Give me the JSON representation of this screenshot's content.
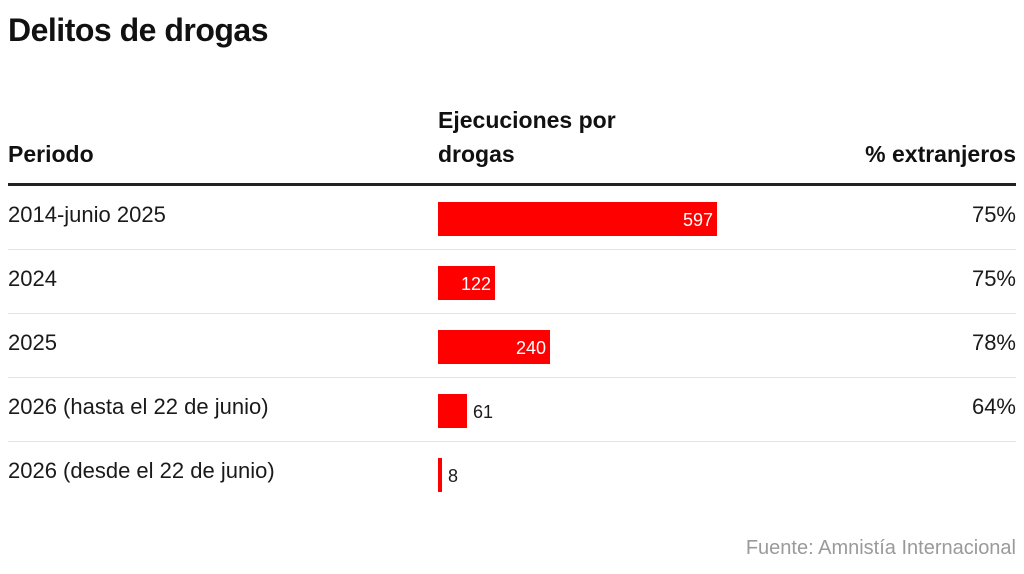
{
  "title": "Delitos de drogas",
  "headers": {
    "period": "Periodo",
    "executions": "Ejecuciones por drogas",
    "foreign_pct": "% extranjeros"
  },
  "colors": {
    "bar": "#ff0000",
    "source_text": "#9a9a9a"
  },
  "source": "Fuente: Amnistía Internacional",
  "chart_data": {
    "type": "bar",
    "orientation": "horizontal",
    "title": "Delitos de drogas",
    "categories": [
      "2014-junio 2025",
      "2024",
      "2025",
      "2026 (hasta el 22 de junio)",
      "2026 (desde el 22 de junio)"
    ],
    "series": [
      {
        "name": "Ejecuciones por drogas",
        "values": [
          597,
          122,
          240,
          61,
          8
        ],
        "labels": [
          "597",
          "122",
          "240",
          "61",
          "8"
        ]
      }
    ],
    "foreign_pct": [
      "75%",
      "75%",
      "78%",
      "64%",
      ""
    ],
    "xlim": [
      0,
      597
    ],
    "grid": false,
    "legend": "none"
  }
}
